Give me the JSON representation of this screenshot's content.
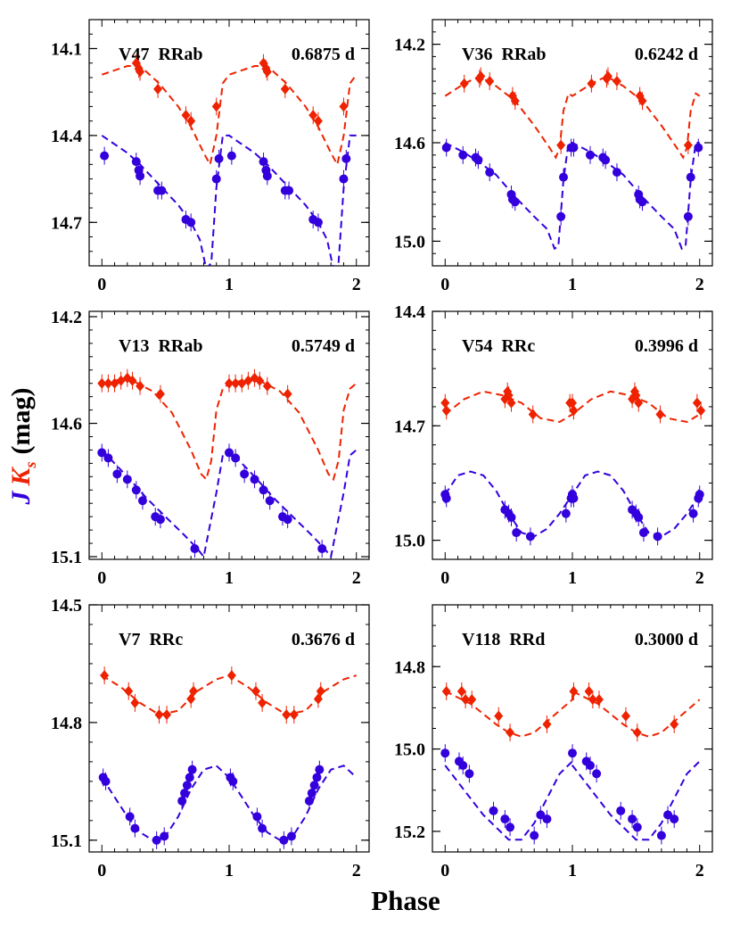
{
  "figure": {
    "xlabel": "Phase",
    "ylabel": {
      "j": "J",
      "k": "K",
      "sub": "s",
      "unit": "(mag)"
    },
    "colors": {
      "J": "#3300dd",
      "Ks": "#ee2200",
      "axis": "#000000"
    }
  },
  "chart_data": [
    {
      "type": "scatter",
      "star": "V47",
      "class": "RRab",
      "period": "0.6875 d",
      "xlim": [
        -0.1,
        2.1
      ],
      "ylim": [
        14.85,
        14.0
      ],
      "xticks": [
        0,
        1,
        2
      ],
      "yticks": [
        14.1,
        14.4,
        14.7
      ],
      "ytick_labels": [
        "14.1",
        "14.4",
        "14.7"
      ],
      "series": [
        {
          "band": "Ks",
          "phase": [
            0.27,
            0.29,
            0.3,
            0.44,
            0.66,
            0.7,
            0.9
          ],
          "mag": [
            14.15,
            14.17,
            14.18,
            14.24,
            14.33,
            14.35,
            14.3
          ],
          "model_phase": [
            0.0,
            0.2,
            0.3,
            0.45,
            0.6,
            0.7,
            0.8,
            0.85,
            0.9,
            0.95,
            1.0
          ],
          "model_mag": [
            14.19,
            14.16,
            14.16,
            14.22,
            14.3,
            14.37,
            14.46,
            14.5,
            14.4,
            14.22,
            14.19
          ]
        },
        {
          "band": "J",
          "phase": [
            0.02,
            0.27,
            0.29,
            0.3,
            0.44,
            0.47,
            0.66,
            0.7,
            0.9,
            0.92
          ],
          "mag": [
            14.47,
            14.49,
            14.52,
            14.54,
            14.59,
            14.59,
            14.69,
            14.7,
            14.55,
            14.48
          ],
          "model_phase": [
            0.0,
            0.2,
            0.3,
            0.45,
            0.6,
            0.7,
            0.77,
            0.82,
            0.86,
            0.9,
            0.95,
            1.0
          ],
          "model_mag": [
            14.4,
            14.46,
            14.5,
            14.57,
            14.64,
            14.7,
            14.76,
            14.86,
            14.84,
            14.58,
            14.4,
            14.4
          ]
        }
      ]
    },
    {
      "type": "scatter",
      "star": "V36",
      "class": "RRab",
      "period": "0.6242 d",
      "xlim": [
        -0.1,
        2.1
      ],
      "ylim": [
        15.1,
        14.1
      ],
      "xticks": [
        0,
        1,
        2
      ],
      "yticks": [
        14.2,
        14.6,
        15.0
      ],
      "ytick_labels": [
        "14.2",
        "14.6",
        "15.0"
      ],
      "series": [
        {
          "band": "Ks",
          "phase": [
            0.15,
            0.27,
            0.28,
            0.35,
            0.53,
            0.55,
            0.91
          ],
          "mag": [
            14.36,
            14.34,
            14.33,
            14.35,
            14.41,
            14.43,
            14.61
          ],
          "model_phase": [
            0.0,
            0.15,
            0.27,
            0.4,
            0.55,
            0.7,
            0.82,
            0.87,
            0.9,
            0.93,
            0.97,
            1.0
          ],
          "model_mag": [
            14.41,
            14.36,
            14.33,
            14.37,
            14.43,
            14.53,
            14.62,
            14.66,
            14.62,
            14.47,
            14.4,
            14.41
          ]
        },
        {
          "band": "J",
          "phase": [
            0.01,
            0.14,
            0.24,
            0.26,
            0.35,
            0.52,
            0.53,
            0.55,
            0.91,
            0.93,
            0.99
          ],
          "mag": [
            14.62,
            14.65,
            14.66,
            14.67,
            14.72,
            14.81,
            14.83,
            14.84,
            14.9,
            14.74,
            14.62
          ],
          "model_phase": [
            0.0,
            0.15,
            0.27,
            0.4,
            0.55,
            0.7,
            0.8,
            0.86,
            0.89,
            0.93,
            0.97,
            1.0
          ],
          "model_mag": [
            14.6,
            14.64,
            14.68,
            14.73,
            14.82,
            14.9,
            14.95,
            15.03,
            15.02,
            14.75,
            14.6,
            14.6
          ]
        }
      ]
    },
    {
      "type": "scatter",
      "star": "V13",
      "class": "RRab",
      "period": "0.5749 d",
      "xlim": [
        -0.1,
        2.1
      ],
      "ylim": [
        15.11,
        14.18
      ],
      "xticks": [
        0,
        1,
        2
      ],
      "yticks": [
        14.2,
        14.6,
        15.1
      ],
      "ytick_labels": [
        "14.2",
        "14.6",
        "15.1"
      ],
      "series": [
        {
          "band": "Ks",
          "phase": [
            0.0,
            0.05,
            0.1,
            0.15,
            0.2,
            0.24,
            0.3,
            0.46
          ],
          "mag": [
            14.45,
            14.45,
            14.45,
            14.44,
            14.43,
            14.44,
            14.46,
            14.49
          ],
          "model_phase": [
            0.0,
            0.2,
            0.4,
            0.55,
            0.7,
            0.78,
            0.82,
            0.86,
            0.9,
            0.95,
            1.0
          ],
          "model_mag": [
            14.45,
            14.43,
            14.48,
            14.56,
            14.7,
            14.79,
            14.81,
            14.74,
            14.55,
            14.47,
            14.45
          ]
        },
        {
          "band": "J",
          "phase": [
            0.0,
            0.05,
            0.12,
            0.2,
            0.27,
            0.32,
            0.42,
            0.46,
            0.73
          ],
          "mag": [
            14.71,
            14.73,
            14.79,
            14.81,
            14.85,
            14.89,
            14.95,
            14.96,
            15.07
          ],
          "model_phase": [
            0.0,
            0.1,
            0.2,
            0.35,
            0.5,
            0.65,
            0.75,
            0.8,
            0.85,
            0.9,
            0.95,
            1.0
          ],
          "model_mag": [
            14.7,
            14.75,
            14.8,
            14.88,
            14.95,
            15.02,
            15.07,
            15.1,
            14.98,
            14.86,
            14.72,
            14.7
          ]
        }
      ]
    },
    {
      "type": "scatter",
      "star": "V54",
      "class": "RRc",
      "period": "0.3996 d",
      "xlim": [
        -0.1,
        2.1
      ],
      "ylim": [
        15.05,
        14.4
      ],
      "xticks": [
        0,
        1,
        2
      ],
      "yticks": [
        14.4,
        14.7,
        15.0
      ],
      "ytick_labels": [
        "14.4",
        "14.7",
        "15.0"
      ],
      "series": [
        {
          "band": "Ks",
          "phase": [
            0.0,
            0.01,
            0.47,
            0.49,
            0.5,
            0.52,
            0.69,
            0.98,
            1.01
          ],
          "mag": [
            14.64,
            14.66,
            14.63,
            14.61,
            14.62,
            14.64,
            14.67,
            14.64,
            14.66
          ],
          "model_phase": [
            0.0,
            0.15,
            0.3,
            0.45,
            0.6,
            0.75,
            0.9,
            1.0
          ],
          "model_mag": [
            14.67,
            14.63,
            14.61,
            14.62,
            14.64,
            14.68,
            14.69,
            14.67
          ]
        },
        {
          "band": "J",
          "phase": [
            0.0,
            0.01,
            0.47,
            0.5,
            0.52,
            0.56,
            0.67,
            0.95,
            0.99,
            1.0
          ],
          "mag": [
            14.88,
            14.89,
            14.92,
            14.93,
            14.94,
            14.98,
            14.99,
            14.93,
            14.89,
            14.88
          ],
          "model_phase": [
            0.0,
            0.1,
            0.2,
            0.3,
            0.4,
            0.5,
            0.6,
            0.7,
            0.8,
            0.9,
            1.0
          ],
          "model_mag": [
            14.88,
            14.83,
            14.82,
            14.83,
            14.87,
            14.93,
            14.98,
            14.99,
            14.97,
            14.93,
            14.88
          ]
        }
      ]
    },
    {
      "type": "scatter",
      "star": "V7",
      "class": "RRc",
      "period": "0.3676 d",
      "xlim": [
        -0.1,
        2.1
      ],
      "ylim": [
        15.13,
        14.5
      ],
      "xticks": [
        0,
        1,
        2
      ],
      "yticks": [
        14.5,
        14.8,
        15.1
      ],
      "ytick_labels": [
        "14.5",
        "14.8",
        "15.1"
      ],
      "series": [
        {
          "band": "Ks",
          "phase": [
            0.02,
            0.21,
            0.26,
            0.45,
            0.51,
            0.7,
            0.72
          ],
          "mag": [
            14.68,
            14.72,
            14.75,
            14.78,
            14.78,
            14.74,
            14.72
          ],
          "model_phase": [
            0.0,
            0.15,
            0.3,
            0.45,
            0.6,
            0.75,
            0.9,
            1.0
          ],
          "model_mag": [
            14.68,
            14.71,
            14.75,
            14.78,
            14.77,
            14.72,
            14.69,
            14.68
          ]
        },
        {
          "band": "J",
          "phase": [
            0.01,
            0.03,
            0.22,
            0.26,
            0.43,
            0.49,
            0.63,
            0.65,
            0.67,
            0.69,
            0.71
          ],
          "mag": [
            14.94,
            14.95,
            15.04,
            15.07,
            15.1,
            15.09,
            15.0,
            14.98,
            14.96,
            14.94,
            14.92
          ],
          "model_phase": [
            0.0,
            0.1,
            0.2,
            0.3,
            0.4,
            0.5,
            0.6,
            0.7,
            0.8,
            0.9,
            1.0
          ],
          "model_mag": [
            14.94,
            14.99,
            15.04,
            15.08,
            15.1,
            15.09,
            15.04,
            14.97,
            14.92,
            14.91,
            14.94
          ]
        }
      ]
    },
    {
      "type": "scatter",
      "star": "V118",
      "class": "RRd",
      "period": "0.3000 d",
      "xlim": [
        -0.1,
        2.1
      ],
      "ylim": [
        15.25,
        14.65
      ],
      "xticks": [
        0,
        1,
        2
      ],
      "yticks": [
        14.8,
        15.0,
        15.2
      ],
      "ytick_labels": [
        "14.8",
        "15.0",
        "15.2"
      ],
      "series": [
        {
          "band": "Ks",
          "phase": [
            0.01,
            0.13,
            0.16,
            0.21,
            0.42,
            0.51,
            0.8
          ],
          "mag": [
            14.86,
            14.86,
            14.88,
            14.88,
            14.92,
            14.96,
            14.94
          ],
          "model_phase": [
            0.0,
            0.2,
            0.4,
            0.5,
            0.6,
            0.7,
            0.85,
            1.0
          ],
          "model_mag": [
            14.86,
            14.89,
            14.94,
            14.96,
            14.97,
            14.96,
            14.92,
            14.88
          ]
        },
        {
          "band": "J",
          "phase": [
            0.0,
            0.11,
            0.14,
            0.19,
            0.38,
            0.47,
            0.51,
            0.7,
            0.75,
            0.8
          ],
          "mag": [
            15.01,
            15.03,
            15.04,
            15.06,
            15.15,
            15.17,
            15.19,
            15.21,
            15.16,
            15.17
          ],
          "model_phase": [
            0.0,
            0.1,
            0.2,
            0.3,
            0.4,
            0.5,
            0.6,
            0.7,
            0.8,
            0.9,
            1.0
          ],
          "model_mag": [
            15.04,
            15.08,
            15.12,
            15.16,
            15.19,
            15.22,
            15.22,
            15.18,
            15.12,
            15.06,
            15.03
          ]
        }
      ]
    }
  ]
}
